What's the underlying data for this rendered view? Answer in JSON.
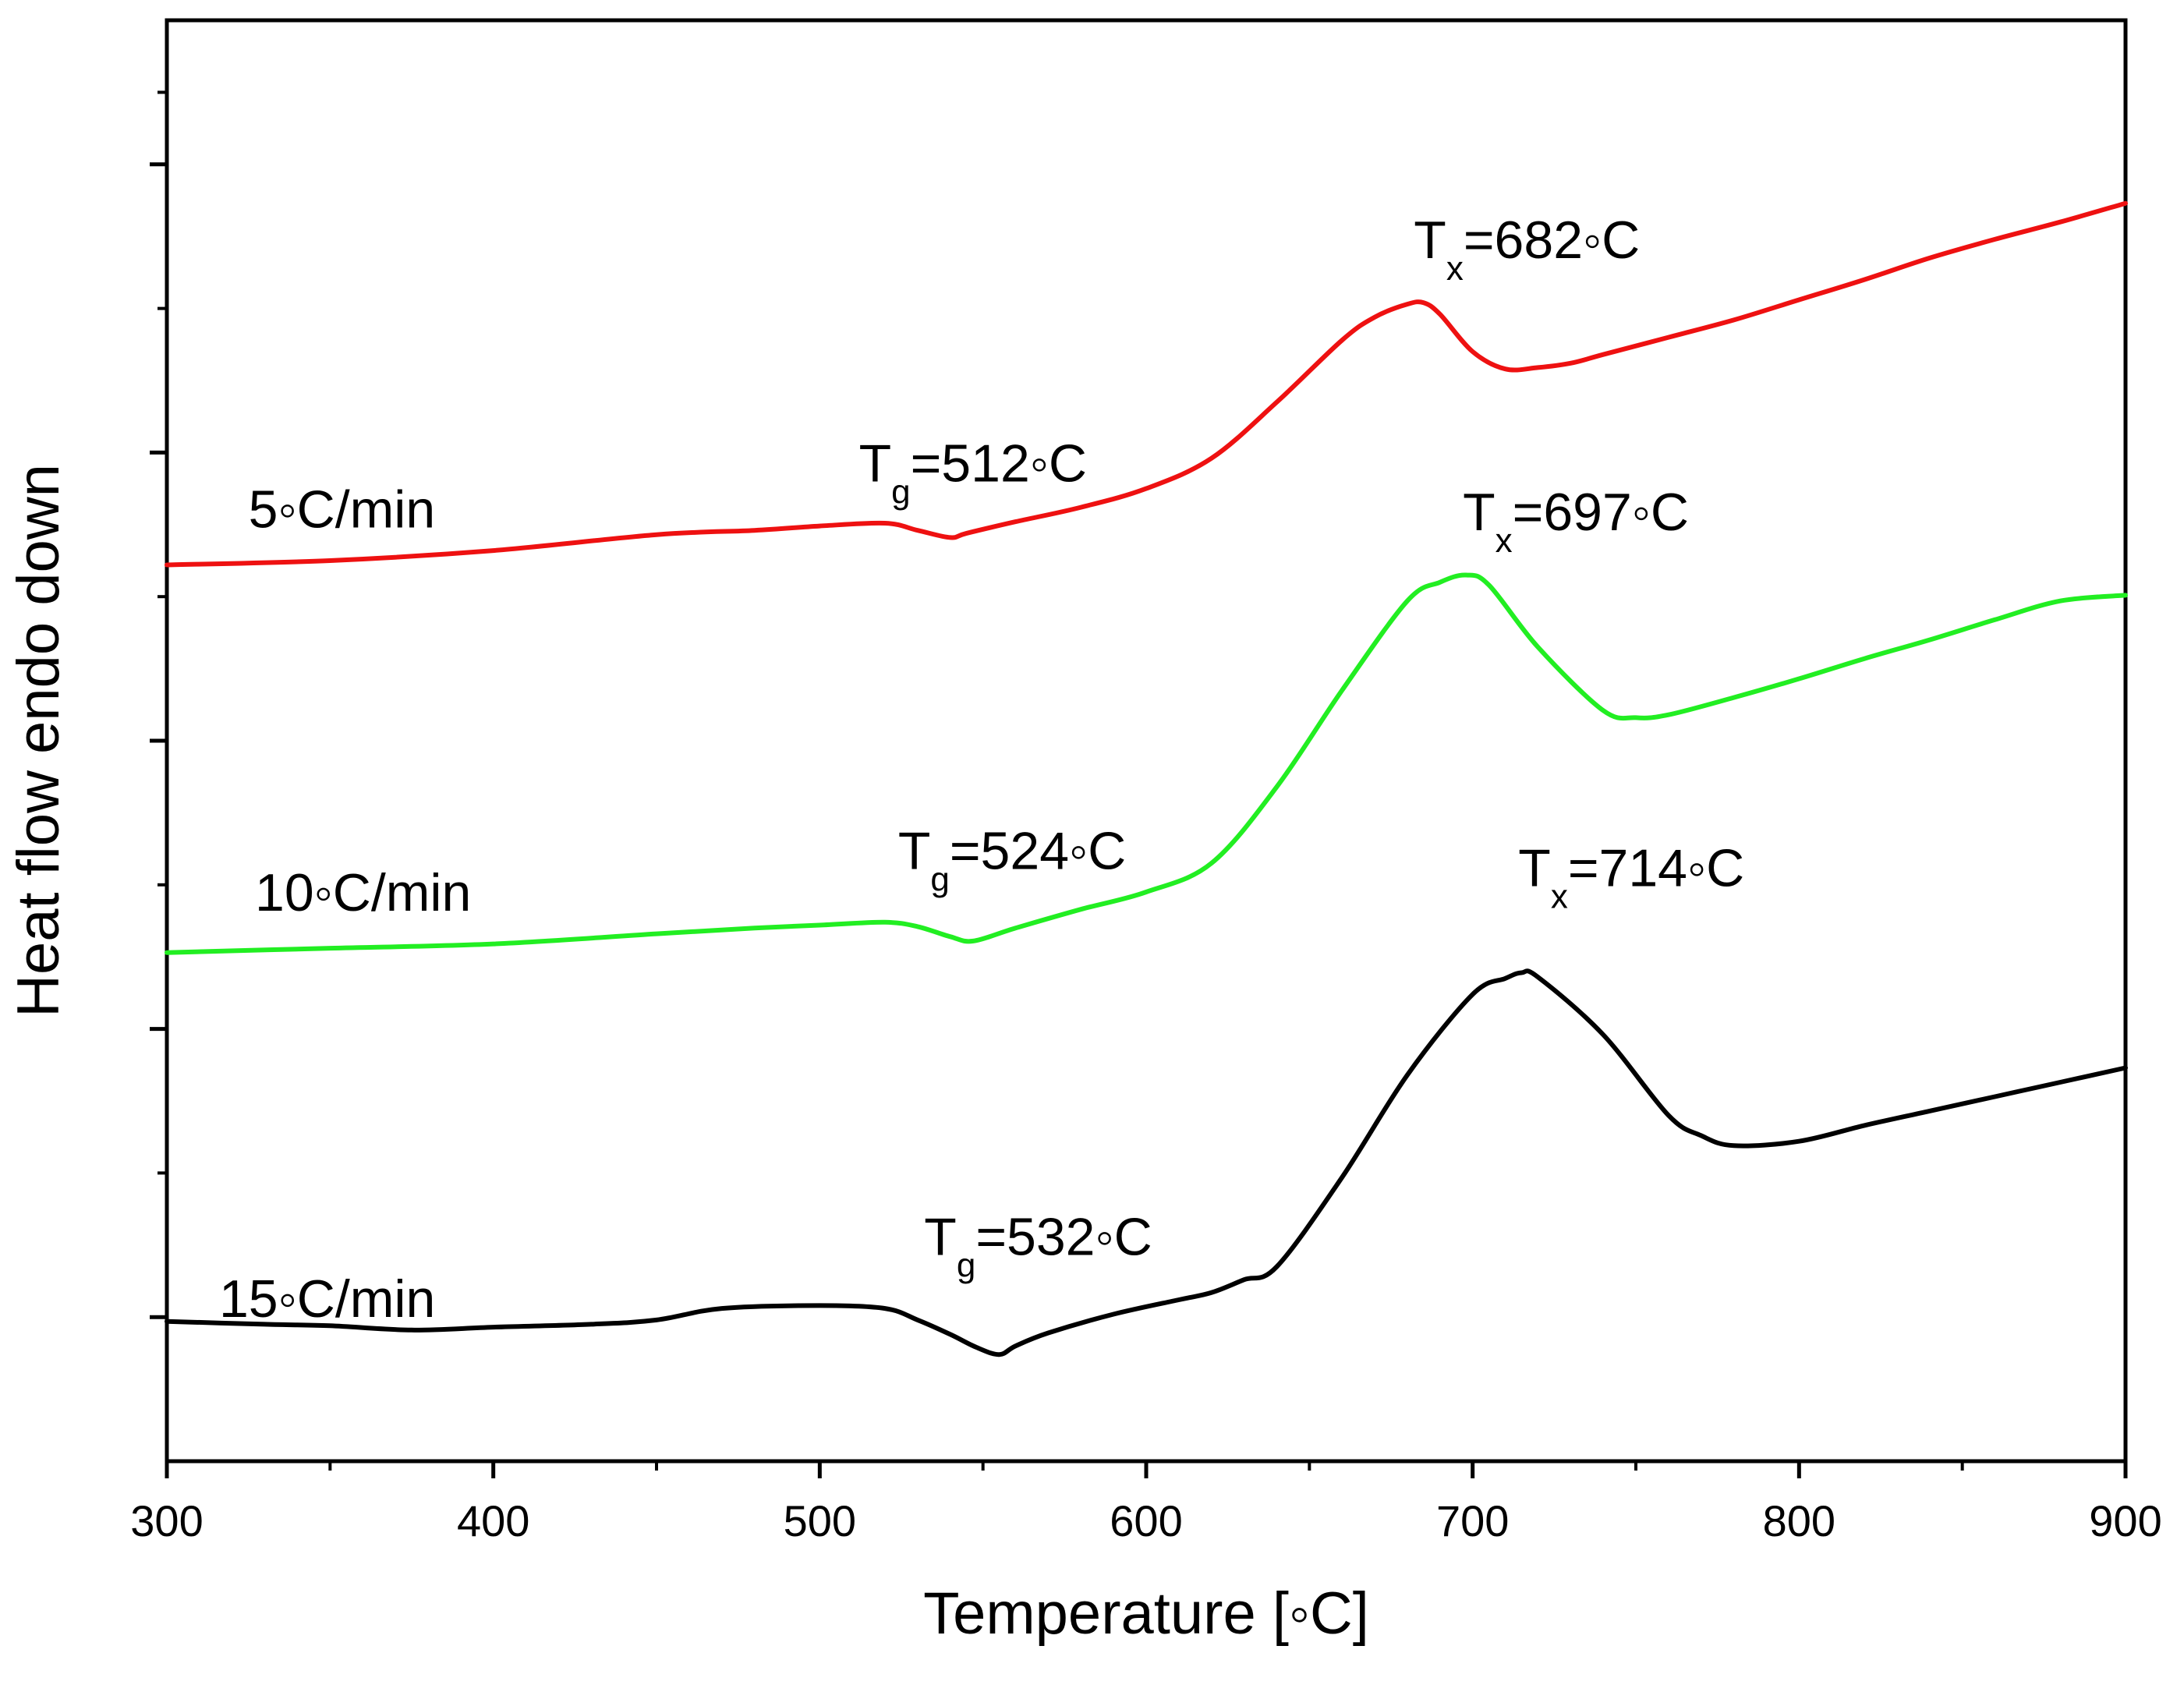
{
  "chart_data": {
    "type": "line",
    "title": "",
    "xlabel": "Temperature [◦C]",
    "ylabel": "Heat flow endo down",
    "xlim": [
      300,
      900
    ],
    "ylim": [
      0,
      100
    ],
    "xticks": [
      300,
      400,
      500,
      600,
      700,
      800,
      900
    ],
    "xtick_labels": [
      "300",
      "400",
      "500",
      "600",
      "700",
      "800",
      "900"
    ],
    "y_major_ticks": [
      10,
      30,
      50,
      70,
      90
    ],
    "y_minor_ticks": [
      20,
      40,
      60,
      80,
      95
    ],
    "grid": false,
    "series": [
      {
        "name": "5◦C/min",
        "color": "#ee1111",
        "x": [
          300,
          350,
          400,
          450,
          480,
          500,
          520,
          530,
          540,
          545,
          560,
          580,
          600,
          620,
          640,
          660,
          670,
          680,
          685,
          690,
          700,
          710,
          720,
          730,
          740,
          760,
          780,
          800,
          820,
          840,
          860,
          880,
          900
        ],
        "y": [
          62.2,
          62.5,
          63.2,
          64.3,
          64.6,
          64.9,
          65.1,
          64.6,
          64.1,
          64.4,
          65.2,
          66.2,
          67.5,
          69.6,
          73.5,
          77.8,
          79.4,
          80.3,
          80.4,
          79.6,
          77.0,
          75.8,
          75.9,
          76.2,
          76.8,
          78.0,
          79.2,
          80.6,
          82.0,
          83.5,
          84.8,
          86.0,
          87.3
        ]
      },
      {
        "name": "10◦C/min",
        "color": "#22ee22",
        "x": [
          300,
          350,
          400,
          450,
          480,
          500,
          520,
          530,
          540,
          547,
          560,
          580,
          600,
          620,
          640,
          660,
          680,
          690,
          698,
          705,
          720,
          740,
          750,
          760,
          780,
          800,
          820,
          840,
          860,
          880,
          900
        ],
        "y": [
          35.3,
          35.6,
          35.9,
          36.6,
          37.0,
          37.2,
          37.4,
          37.1,
          36.4,
          36.1,
          37.0,
          38.3,
          39.5,
          41.5,
          46.8,
          53.5,
          59.7,
          61.0,
          61.5,
          60.8,
          56.5,
          52.1,
          51.6,
          51.8,
          53.0,
          54.3,
          55.7,
          57.0,
          58.4,
          59.7,
          60.1
        ]
      },
      {
        "name": "15◦C/min",
        "color": "#000000",
        "x": [
          300,
          330,
          350,
          375,
          400,
          430,
          450,
          470,
          500,
          520,
          530,
          540,
          548,
          555,
          560,
          570,
          590,
          610,
          620,
          630,
          640,
          660,
          680,
          700,
          710,
          715,
          720,
          740,
          760,
          770,
          780,
          800,
          820,
          840,
          860,
          880,
          900
        ],
        "y": [
          9.7,
          9.5,
          9.4,
          9.1,
          9.3,
          9.5,
          9.8,
          10.6,
          10.8,
          10.6,
          9.8,
          8.8,
          7.9,
          7.4,
          8.0,
          8.9,
          10.2,
          11.2,
          11.7,
          12.6,
          13.5,
          19.7,
          26.8,
          32.4,
          33.5,
          33.9,
          33.6,
          29.6,
          24.0,
          22.6,
          21.9,
          22.2,
          23.3,
          24.3,
          25.3,
          26.3,
          27.3
        ]
      }
    ],
    "annotations": [
      {
        "main": "T",
        "sub": "x",
        "rest": "=682◦C",
        "x": 682,
        "y": 83.5
      },
      {
        "main": "T",
        "sub": "g",
        "rest": "=512◦C",
        "x": 512,
        "y": 68.0
      },
      {
        "main": "T",
        "sub": "x",
        "rest": "=697◦C",
        "x": 697,
        "y": 64.6
      },
      {
        "main": "T",
        "sub": "g",
        "rest": "=524◦C",
        "x": 524,
        "y": 41.1
      },
      {
        "main": "T",
        "sub": "x",
        "rest": "=714◦C",
        "x": 714,
        "y": 39.9
      },
      {
        "main": "T",
        "sub": "g",
        "rest": "=532◦C",
        "x": 532,
        "y": 14.3
      }
    ],
    "rate_labels": [
      {
        "text": "5◦C/min",
        "x": 325,
        "y": 64.8
      },
      {
        "text": "10◦C/min",
        "x": 327,
        "y": 38.2
      },
      {
        "text": "15◦C/min",
        "x": 316,
        "y": 10.0
      }
    ]
  }
}
